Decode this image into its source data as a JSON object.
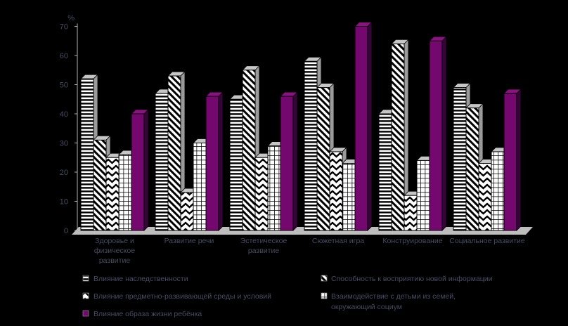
{
  "chart_data": {
    "type": "bar",
    "title": "",
    "ylabel": "%",
    "xlabel": "",
    "ylim": [
      0,
      70
    ],
    "yticks": [
      0,
      10,
      20,
      30,
      40,
      50,
      60,
      70
    ],
    "grid": false,
    "legend_position": "bottom",
    "effect": "3d-black-background",
    "categories": [
      {
        "lines": [
          "Здоровье и",
          "физическое",
          "развитие"
        ]
      },
      {
        "lines": [
          "Развитие речи"
        ]
      },
      {
        "lines": [
          "Эстетическое",
          "развитие"
        ]
      },
      {
        "lines": [
          "Сюжетная игра"
        ]
      },
      {
        "lines": [
          "Конструирование"
        ]
      },
      {
        "lines": [
          "Социальное развитие"
        ]
      }
    ],
    "series": [
      {
        "name": "Влияние наследственности",
        "pattern": "horizontal-stripes",
        "values": [
          52,
          47,
          45,
          58,
          40,
          49
        ]
      },
      {
        "name": "Способность к восприятию новой информации",
        "pattern": "diagonal-stripes",
        "values": [
          31,
          53,
          55,
          49,
          64,
          42
        ]
      },
      {
        "name": "Влияние предметно-развивающей среды и условий",
        "pattern": "chevron",
        "values": [
          25,
          13,
          25,
          27,
          12,
          23
        ]
      },
      {
        "name": "Взаимодействие с детьми из семей,\nокружающий социум",
        "pattern": "grid",
        "values": [
          26,
          30,
          29,
          23,
          24,
          27
        ]
      },
      {
        "name": "Влияние образа жизни ребёнка",
        "pattern": "solid-purple",
        "values": [
          40,
          46,
          46,
          70,
          65,
          47
        ]
      }
    ],
    "legend_columns": [
      [
        0,
        2,
        4
      ],
      [
        1,
        3
      ]
    ]
  },
  "colors": {
    "background": "#000000",
    "purple": "#75086e",
    "purple_top": "#8c1282",
    "purple_side": "#38033a",
    "bar_face_bg": "#ffffff",
    "bar_pattern": "#000000",
    "bar_top": "#c6c6c6",
    "bar_side": "#9b9b9b",
    "floor": "#bdbdbd",
    "axis": "#b5b5b5",
    "text": "#474d63"
  }
}
